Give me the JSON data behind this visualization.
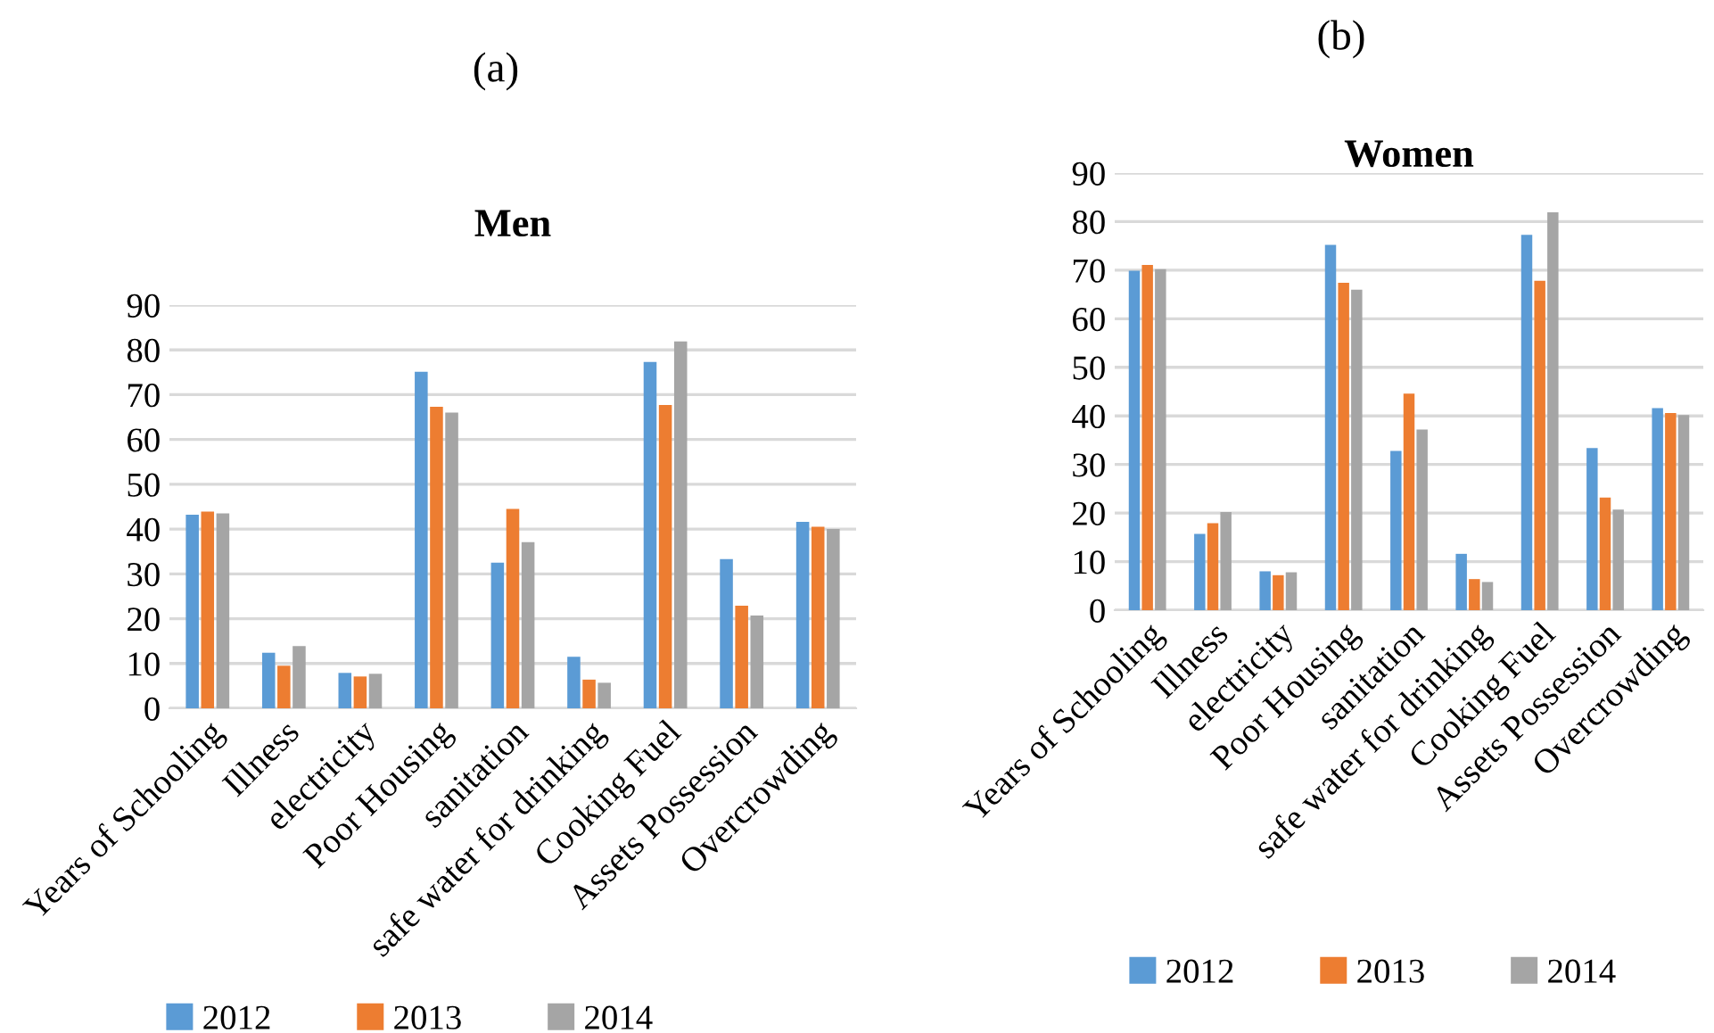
{
  "chart_data": [
    {
      "type": "bar",
      "title": "Men",
      "annotations": [
        "(a)"
      ],
      "categories": [
        "Years of Schooling",
        "Illness",
        "electricity",
        "Poor Housing",
        "sanitation",
        "safe water for drinking",
        "Cooking Fuel",
        "Assets Possession",
        "Overcrowding"
      ],
      "series": [
        {
          "name": "2012",
          "color": "#5b9bd5",
          "values": [
            43.2,
            12.4,
            7.9,
            75.1,
            32.5,
            11.5,
            77.3,
            33.3,
            41.6
          ]
        },
        {
          "name": "2013",
          "color": "#ed7d31",
          "values": [
            43.9,
            9.5,
            7.1,
            67.3,
            44.5,
            6.4,
            67.7,
            22.9,
            40.5
          ]
        },
        {
          "name": "2014",
          "color": "#a5a5a5",
          "values": [
            43.5,
            13.9,
            7.7,
            66.0,
            37.1,
            5.7,
            81.9,
            20.7,
            40.0
          ]
        }
      ],
      "ylim": [
        0,
        90
      ],
      "yticks": [
        0,
        10,
        20,
        30,
        40,
        50,
        60,
        70,
        80,
        90
      ],
      "grid": "y",
      "legend": "bottom"
    },
    {
      "type": "bar",
      "title": "Women",
      "annotations": [
        "(b)"
      ],
      "categories": [
        "Years of Schooling",
        "Illness",
        "electricity",
        "Poor Housing",
        "sanitation",
        "safe water for drinking",
        "Cooking Fuel",
        "Assets Possession",
        "Overcrowding"
      ],
      "series": [
        {
          "name": "2012",
          "color": "#5b9bd5",
          "values": [
            69.9,
            15.7,
            8.0,
            75.2,
            32.8,
            11.6,
            77.3,
            33.4,
            41.6
          ]
        },
        {
          "name": "2013",
          "color": "#ed7d31",
          "values": [
            71.1,
            17.9,
            7.2,
            67.4,
            44.6,
            6.4,
            67.8,
            23.2,
            40.6
          ]
        },
        {
          "name": "2014",
          "color": "#a5a5a5",
          "values": [
            70.2,
            20.2,
            7.8,
            66.0,
            37.2,
            5.8,
            81.9,
            20.7,
            40.2
          ]
        }
      ],
      "ylim": [
        0,
        90
      ],
      "yticks": [
        0,
        10,
        20,
        30,
        40,
        50,
        60,
        70,
        80,
        90
      ],
      "grid": "y",
      "legend": "bottom"
    }
  ]
}
